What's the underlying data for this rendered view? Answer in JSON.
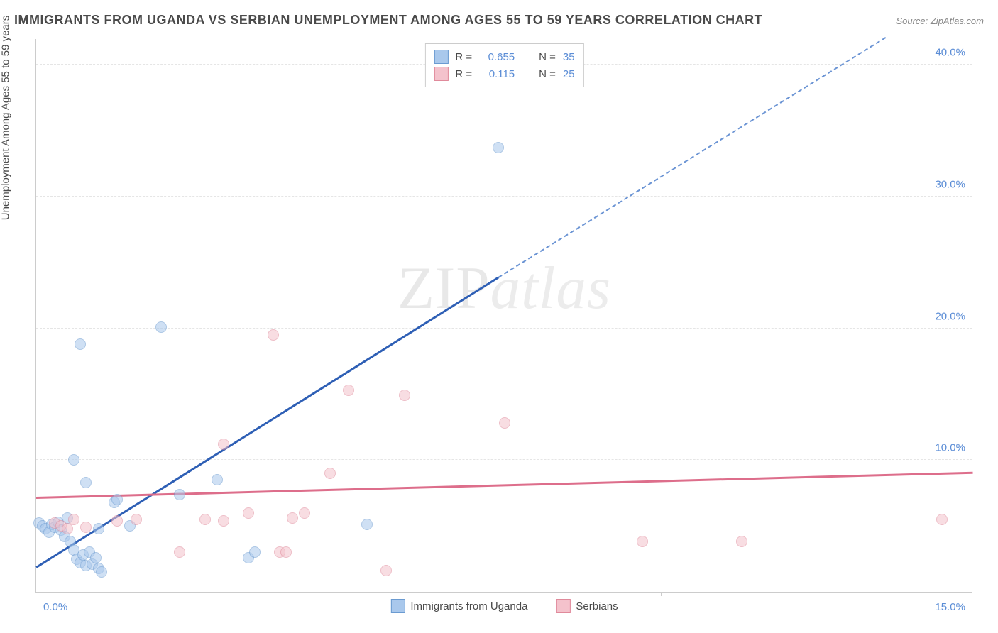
{
  "title": "IMMIGRANTS FROM UGANDA VS SERBIAN UNEMPLOYMENT AMONG AGES 55 TO 59 YEARS CORRELATION CHART",
  "source_prefix": "Source: ",
  "source_name": "ZipAtlas.com",
  "y_axis_label": "Unemployment Among Ages 55 to 59 years",
  "watermark_a": "ZIP",
  "watermark_b": "atlas",
  "chart": {
    "type": "scatter",
    "xlim": [
      0,
      15
    ],
    "ylim": [
      0,
      42
    ],
    "y_ticks": [
      10,
      20,
      30,
      40
    ],
    "y_tick_labels": [
      "10.0%",
      "20.0%",
      "30.0%",
      "40.0%"
    ],
    "y_tick_color": "#5b8dd6",
    "x_ticks": [
      0,
      5,
      10,
      15
    ],
    "x_tick_labels": [
      "0.0%",
      "5.0%",
      "10.0%",
      "15.0%"
    ],
    "x_tick_color": "#5b8dd6",
    "grid_color": "#e5e5e5",
    "background_color": "#ffffff",
    "marker_radius": 8,
    "marker_opacity": 0.55,
    "series": [
      {
        "name": "Immigrants from Uganda",
        "fill_color": "#a9c8ec",
        "stroke_color": "#6b9bd1",
        "legend_R_label": "R =",
        "legend_R_value": "0.655",
        "legend_N_label": "N =",
        "legend_N_value": "35",
        "trend": {
          "x1": 0.0,
          "y1": 1.8,
          "x2": 7.4,
          "y2": 23.8,
          "color": "#2e5fb5",
          "width": 2.5
        },
        "trend_dashed": {
          "x1": 7.4,
          "y1": 23.8,
          "x2": 13.6,
          "y2": 42.0,
          "color": "#6b94d4"
        },
        "points": [
          [
            0.05,
            5.2
          ],
          [
            0.1,
            5.0
          ],
          [
            0.15,
            4.8
          ],
          [
            0.2,
            4.5
          ],
          [
            0.25,
            5.1
          ],
          [
            0.3,
            4.9
          ],
          [
            0.35,
            5.3
          ],
          [
            0.4,
            4.7
          ],
          [
            0.45,
            4.2
          ],
          [
            0.5,
            5.6
          ],
          [
            0.55,
            3.8
          ],
          [
            0.6,
            3.2
          ],
          [
            0.65,
            2.5
          ],
          [
            0.7,
            2.2
          ],
          [
            0.75,
            2.8
          ],
          [
            0.8,
            2.0
          ],
          [
            0.85,
            3.0
          ],
          [
            0.9,
            2.1
          ],
          [
            0.95,
            2.6
          ],
          [
            1.0,
            1.8
          ],
          [
            1.05,
            1.5
          ],
          [
            0.6,
            10.0
          ],
          [
            0.7,
            18.8
          ],
          [
            0.8,
            8.3
          ],
          [
            1.25,
            6.8
          ],
          [
            1.3,
            7.0
          ],
          [
            1.5,
            5.0
          ],
          [
            2.0,
            20.1
          ],
          [
            2.3,
            7.4
          ],
          [
            2.9,
            8.5
          ],
          [
            3.4,
            2.6
          ],
          [
            3.5,
            3.0
          ],
          [
            5.3,
            5.1
          ],
          [
            7.4,
            33.7
          ],
          [
            1.0,
            4.8
          ]
        ]
      },
      {
        "name": "Serbians",
        "fill_color": "#f4c2cc",
        "stroke_color": "#e08a9b",
        "legend_R_label": "R =",
        "legend_R_value": "0.115",
        "legend_N_label": "N =",
        "legend_N_value": "25",
        "trend": {
          "x1": 0.0,
          "y1": 7.1,
          "x2": 15.0,
          "y2": 9.0,
          "color": "#dd6e8b",
          "width": 2.5
        },
        "points": [
          [
            0.3,
            5.2
          ],
          [
            0.4,
            5.0
          ],
          [
            0.5,
            4.8
          ],
          [
            0.6,
            5.5
          ],
          [
            0.8,
            4.9
          ],
          [
            1.3,
            5.4
          ],
          [
            1.6,
            5.5
          ],
          [
            2.3,
            3.0
          ],
          [
            2.7,
            5.5
          ],
          [
            3.0,
            5.4
          ],
          [
            3.0,
            11.2
          ],
          [
            3.4,
            6.0
          ],
          [
            3.8,
            19.5
          ],
          [
            3.9,
            3.0
          ],
          [
            4.1,
            5.6
          ],
          [
            4.3,
            6.0
          ],
          [
            4.7,
            9.0
          ],
          [
            5.0,
            15.3
          ],
          [
            5.6,
            1.6
          ],
          [
            5.9,
            14.9
          ],
          [
            7.5,
            12.8
          ],
          [
            9.7,
            3.8
          ],
          [
            11.3,
            3.8
          ],
          [
            14.5,
            5.5
          ],
          [
            4.0,
            3.0
          ]
        ]
      }
    ],
    "bottom_legend": [
      {
        "label": "Immigrants from Uganda",
        "fill": "#a9c8ec",
        "stroke": "#6b9bd1"
      },
      {
        "label": "Serbians",
        "fill": "#f4c2cc",
        "stroke": "#e08a9b"
      }
    ]
  }
}
